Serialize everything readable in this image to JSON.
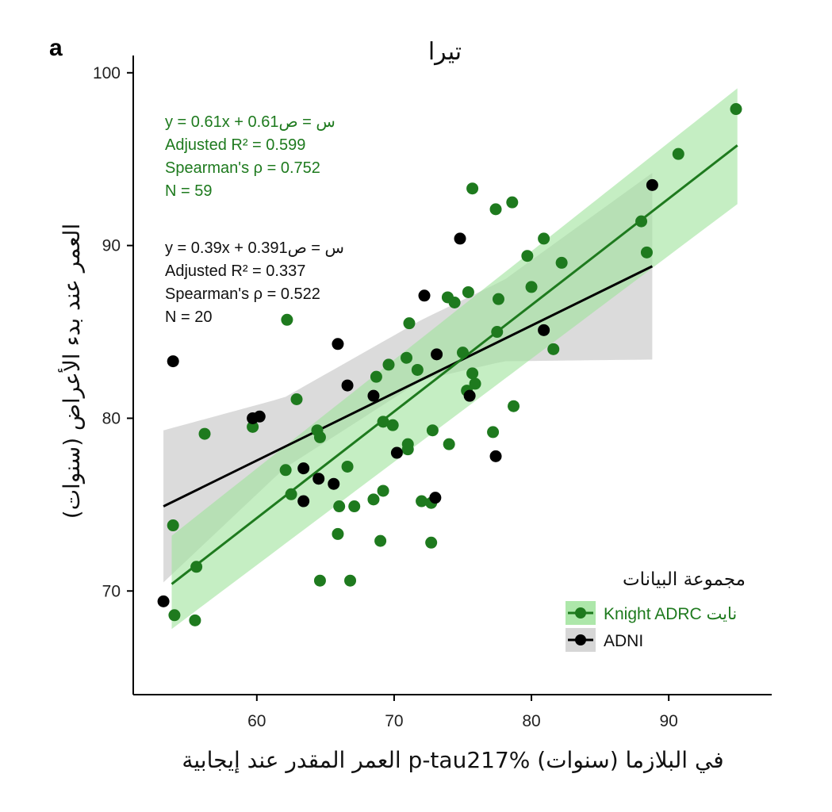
{
  "panel_label": "a",
  "colors": {
    "knight": "#1e7a1e",
    "knight_band": "#9fe39b",
    "adni": "#000000",
    "adni_band": "#cfcfcf",
    "overlap_point": "#557a55"
  },
  "stats": {
    "knight": [
      "y = 0.61x + 0.61س = ص",
      "Adjusted R² = 0.599",
      "Spearman's ρ = 0.752",
      "N = 59"
    ],
    "adni": [
      "y = 0.39x + 0.391س = ص",
      "Adjusted R² = 0.337",
      "Spearman's ρ = 0.522",
      "N = 20"
    ]
  },
  "chart_data": {
    "type": "scatter",
    "title": "تيرا",
    "xlabel": "العمر المقدر عند إيجابية p-tau217% في البلازما (سنوات)",
    "ylabel": "العمر عند بدء الأعراض (سنوات)",
    "xlim": [
      51,
      97.5
    ],
    "ylim": [
      64,
      101
    ],
    "xticks": [
      60,
      70,
      80,
      90
    ],
    "yticks": [
      70,
      80,
      90,
      100
    ],
    "legend": {
      "title": "مجموعة البيانات",
      "position": "bottom-right"
    },
    "series": [
      {
        "name": "Knight ADRC نايت",
        "fit": {
          "x": [
            53.8,
            95.0
          ],
          "y": [
            70.4,
            95.8
          ]
        },
        "ci_band": {
          "x": [
            53.8,
            95.0
          ],
          "lower": [
            67.8,
            92.4
          ],
          "upper": [
            73.2,
            99.1
          ]
        },
        "points": [
          [
            53.9,
            73.8
          ],
          [
            54.0,
            68.6
          ],
          [
            55.5,
            68.3
          ],
          [
            55.6,
            71.4
          ],
          [
            56.2,
            79.1
          ],
          [
            59.7,
            79.5
          ],
          [
            62.2,
            85.7
          ],
          [
            62.5,
            75.6
          ],
          [
            62.9,
            81.1
          ],
          [
            62.1,
            77.0
          ],
          [
            64.4,
            79.3
          ],
          [
            64.6,
            78.9
          ],
          [
            64.6,
            70.6
          ],
          [
            65.9,
            73.3
          ],
          [
            66.0,
            74.9
          ],
          [
            66.6,
            77.2
          ],
          [
            66.8,
            70.6
          ],
          [
            67.1,
            74.9
          ],
          [
            68.5,
            75.3
          ],
          [
            68.7,
            82.4
          ],
          [
            69.2,
            79.8
          ],
          [
            69.0,
            72.9
          ],
          [
            69.2,
            75.8
          ],
          [
            69.6,
            83.1
          ],
          [
            69.9,
            79.6
          ],
          [
            70.9,
            83.5
          ],
          [
            71.0,
            78.2
          ],
          [
            71.0,
            78.5
          ],
          [
            71.1,
            85.5
          ],
          [
            71.7,
            82.8
          ],
          [
            72.0,
            75.2
          ],
          [
            72.7,
            75.1
          ],
          [
            72.7,
            72.8
          ],
          [
            72.8,
            79.3
          ],
          [
            73.9,
            87.0
          ],
          [
            74.0,
            78.5
          ],
          [
            74.4,
            86.7
          ],
          [
            75.0,
            83.8
          ],
          [
            75.3,
            81.6
          ],
          [
            75.4,
            87.3
          ],
          [
            75.7,
            93.3
          ],
          [
            75.7,
            82.6
          ],
          [
            75.9,
            82.0
          ],
          [
            77.2,
            79.2
          ],
          [
            77.4,
            92.1
          ],
          [
            77.5,
            85.0
          ],
          [
            77.6,
            86.9
          ],
          [
            78.6,
            92.5
          ],
          [
            78.7,
            80.7
          ],
          [
            79.7,
            89.4
          ],
          [
            80.0,
            87.6
          ],
          [
            80.9,
            90.4
          ],
          [
            81.6,
            84.0
          ],
          [
            82.2,
            89.0
          ],
          [
            88.0,
            91.4
          ],
          [
            88.4,
            89.6
          ],
          [
            90.7,
            95.3
          ],
          [
            94.9,
            97.9
          ]
        ]
      },
      {
        "name": "ADNI",
        "fit": {
          "x": [
            53.2,
            88.8
          ],
          "y": [
            74.9,
            88.8
          ]
        },
        "ci_band": {
          "x": [
            53.2,
            62,
            72,
            78,
            88.8
          ],
          "lower": [
            70.5,
            77.1,
            82.2,
            83.3,
            83.4
          ],
          "upper": [
            79.3,
            81.2,
            85.7,
            88.0,
            94.2
          ]
        },
        "points": [
          [
            53.2,
            69.4
          ],
          [
            53.9,
            83.3
          ],
          [
            59.7,
            80.0
          ],
          [
            60.2,
            80.1
          ],
          [
            63.4,
            77.1
          ],
          [
            63.4,
            75.2
          ],
          [
            64.5,
            76.5
          ],
          [
            65.6,
            76.2
          ],
          [
            65.9,
            84.3
          ],
          [
            66.6,
            81.9
          ],
          [
            68.5,
            81.3
          ],
          [
            70.2,
            78.0
          ],
          [
            72.2,
            87.1
          ],
          [
            73.0,
            75.4
          ],
          [
            73.1,
            83.7
          ],
          [
            74.8,
            90.4
          ],
          [
            75.5,
            81.3
          ],
          [
            77.4,
            77.8
          ],
          [
            80.9,
            85.1
          ],
          [
            88.8,
            93.5
          ]
        ]
      }
    ]
  }
}
